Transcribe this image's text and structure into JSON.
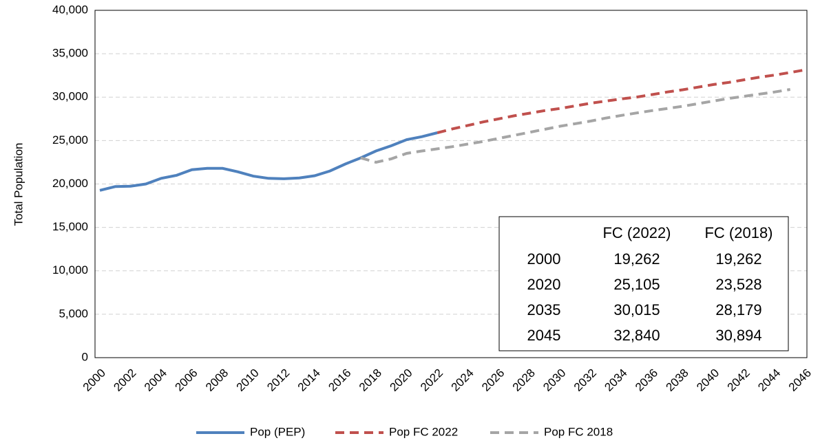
{
  "chart_data": {
    "type": "line",
    "y_label": "Total Population",
    "categories": [
      "2000",
      null,
      "2002",
      null,
      "2004",
      null,
      "2006",
      null,
      "2008",
      null,
      "2010",
      null,
      "2012",
      null,
      "2014",
      null,
      "2016",
      null,
      "2018",
      null,
      "2020",
      null,
      "2022",
      null,
      "2024",
      null,
      "2026",
      null,
      "2028",
      null,
      "2030",
      null,
      "2032",
      null,
      "2034",
      null,
      "2036",
      null,
      "2038",
      null,
      "2040",
      null,
      "2042",
      null,
      "2044",
      null,
      "2046"
    ],
    "series": [
      {
        "name": "Pop (PEP)",
        "color": "#4f81bd",
        "dash": false,
        "values": [
          19262,
          19700,
          19750,
          20000,
          20650,
          21000,
          21650,
          21800,
          21800,
          21400,
          20900,
          20650,
          20600,
          20700,
          20950,
          21500,
          22300,
          23000,
          23800,
          24400,
          25105,
          25450,
          25900,
          null,
          null,
          null,
          null,
          null,
          null,
          null,
          null,
          null,
          null,
          null,
          null,
          null,
          null,
          null,
          null,
          null,
          null,
          null,
          null,
          null,
          null,
          null,
          null
        ]
      },
      {
        "name": "Pop FC 2022",
        "color": "#c0504d",
        "dash": true,
        "values": [
          null,
          null,
          null,
          null,
          null,
          null,
          null,
          null,
          null,
          null,
          null,
          null,
          null,
          null,
          null,
          null,
          null,
          null,
          null,
          null,
          null,
          null,
          25900,
          26350,
          26750,
          27150,
          27500,
          27850,
          28150,
          28450,
          28700,
          29000,
          29300,
          29550,
          29800,
          30015,
          30300,
          30600,
          30850,
          31150,
          31450,
          31700,
          32000,
          32300,
          32550,
          32840,
          33150
        ]
      },
      {
        "name": "Pop FC 2018",
        "color": "#a5a5a5",
        "dash": true,
        "values": [
          null,
          null,
          null,
          null,
          null,
          null,
          null,
          null,
          null,
          null,
          null,
          null,
          null,
          null,
          null,
          null,
          null,
          23000,
          22500,
          22900,
          23528,
          23800,
          24050,
          24300,
          24600,
          24900,
          25250,
          25600,
          25950,
          26300,
          26650,
          26950,
          27250,
          27600,
          27900,
          28179,
          28450,
          28700,
          28950,
          29250,
          29550,
          29850,
          30100,
          30350,
          30600,
          30894,
          null
        ]
      }
    ],
    "ylim": [
      0,
      40000
    ],
    "yticks": [
      0,
      {
        "value": 5000,
        "label": "5,000"
      },
      {
        "value": 10000,
        "label": "10,000"
      },
      {
        "value": 15000,
        "label": "15,000"
      },
      {
        "value": 20000,
        "label": "20,000"
      },
      {
        "value": 25000,
        "label": "25,000"
      },
      {
        "value": 30000,
        "label": "30,000"
      },
      {
        "value": 35000,
        "label": "35,000"
      },
      {
        "value": 40000,
        "label": "40,000"
      }
    ],
    "grid": true,
    "legend": "bottom",
    "table": {
      "columns": [
        "FC (2022)",
        "FC (2018)"
      ],
      "rows": [
        {
          "label": "2000",
          "values": [
            "19,262",
            "19,262"
          ]
        },
        {
          "label": "2020",
          "values": [
            "25,105",
            "23,528"
          ]
        },
        {
          "label": "2035",
          "values": [
            "30,015",
            "28,179"
          ]
        },
        {
          "label": "2045",
          "values": [
            "32,840",
            "30,894"
          ]
        }
      ]
    }
  }
}
